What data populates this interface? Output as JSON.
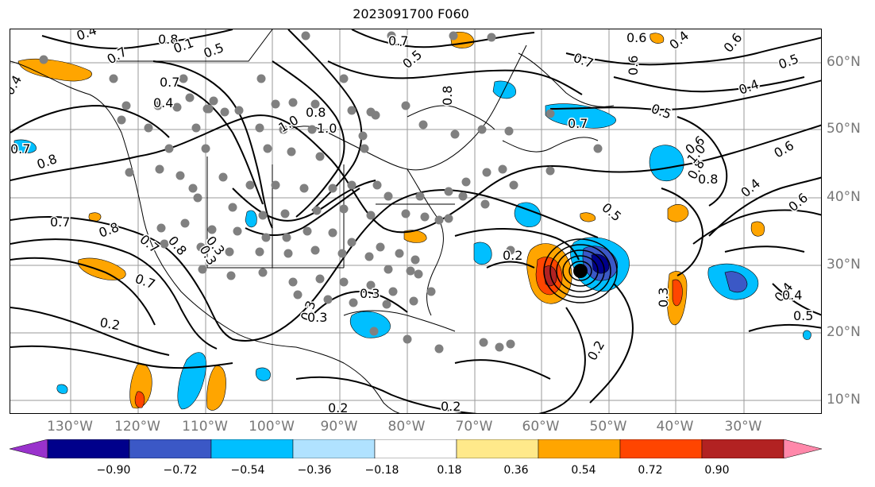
{
  "title": "2023091700 F060",
  "map": {
    "lon_labels": [
      "130°W",
      "120°W",
      "110°W",
      "100°W",
      "90°W",
      "80°W",
      "70°W",
      "60°W",
      "50°W",
      "40°W",
      "30°W"
    ],
    "lat_labels": [
      "60°N",
      "50°N",
      "40°N",
      "30°N",
      "20°N",
      "10°N"
    ],
    "contour_labels": [
      "0.4",
      "0.8",
      "0.1",
      "0.5",
      "0.7",
      "0.5",
      "0.7",
      "0.4",
      "0.6",
      "0.7",
      "0.4",
      "0.6",
      "0.5",
      "0.5",
      "0.4",
      "0.6",
      "0.8",
      "0.6",
      "0.7",
      "0.8",
      "0.7",
      "0.4",
      "0.8",
      "1.0",
      "1.0",
      "0.7",
      "0.8",
      "1.0",
      "0.8",
      "0.6",
      "0.4",
      "0.6",
      "0.7",
      "0.8",
      "0.7",
      "0.8",
      "0.3",
      "0.2",
      "0.5",
      "0.4",
      "0.3",
      "0.7",
      "0.2",
      "0.3",
      "0.3",
      "0.2",
      "0.3",
      "0.2",
      "0.2",
      "0.3",
      "0.4",
      "0.5"
    ],
    "colors": {
      "contour": "#000000",
      "grid": "#9a9a9a",
      "points": "#808080",
      "coast": "#000000"
    }
  },
  "colorbar": {
    "ticks": [
      "−0.90",
      "−0.72",
      "−0.54",
      "−0.36",
      "−0.18",
      "0.18",
      "0.36",
      "0.54",
      "0.72",
      "0.90"
    ],
    "colors": [
      "#9932cc",
      "#00008b",
      "#3b58c6",
      "#00bfff",
      "#b0e2ff",
      "#ffffff",
      "#ffe98a",
      "#ffa500",
      "#ff4500",
      "#b22222",
      "#ff88aa"
    ]
  }
}
